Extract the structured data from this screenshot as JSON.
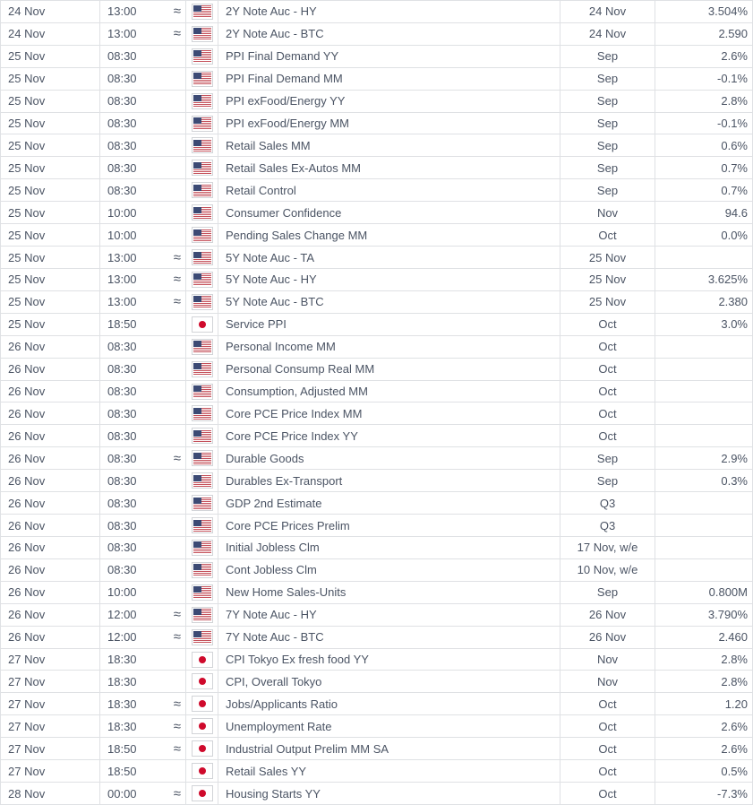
{
  "colors": {
    "text": "#4b5464",
    "border": "#dfe1e4",
    "flag-border": "#d2d4d8",
    "us-canton": "#3c4a74",
    "us-stripe": "#c4505a",
    "jp-red": "#cf0a2c",
    "row-bg": "#ffffff"
  },
  "approx_symbol": "≈",
  "flags": {
    "us": "united-states-flag",
    "jp": "japan-flag"
  },
  "table": {
    "columns": [
      "date",
      "time",
      "approx-indicator",
      "country-flag",
      "event",
      "period",
      "value"
    ],
    "rows": [
      {
        "date": "24 Nov",
        "time": "13:00",
        "approx": true,
        "country": "us",
        "event": "2Y Note Auc - HY",
        "period": "24 Nov",
        "value": "3.504%"
      },
      {
        "date": "24 Nov",
        "time": "13:00",
        "approx": true,
        "country": "us",
        "event": "2Y Note Auc - BTC",
        "period": "24 Nov",
        "value": "2.590"
      },
      {
        "date": "25 Nov",
        "time": "08:30",
        "approx": false,
        "country": "us",
        "event": "PPI Final Demand YY",
        "period": "Sep",
        "value": "2.6%"
      },
      {
        "date": "25 Nov",
        "time": "08:30",
        "approx": false,
        "country": "us",
        "event": "PPI Final Demand MM",
        "period": "Sep",
        "value": "-0.1%"
      },
      {
        "date": "25 Nov",
        "time": "08:30",
        "approx": false,
        "country": "us",
        "event": "PPI exFood/Energy YY",
        "period": "Sep",
        "value": "2.8%"
      },
      {
        "date": "25 Nov",
        "time": "08:30",
        "approx": false,
        "country": "us",
        "event": "PPI exFood/Energy MM",
        "period": "Sep",
        "value": "-0.1%"
      },
      {
        "date": "25 Nov",
        "time": "08:30",
        "approx": false,
        "country": "us",
        "event": "Retail Sales MM",
        "period": "Sep",
        "value": "0.6%"
      },
      {
        "date": "25 Nov",
        "time": "08:30",
        "approx": false,
        "country": "us",
        "event": "Retail Sales Ex-Autos MM",
        "period": "Sep",
        "value": "0.7%"
      },
      {
        "date": "25 Nov",
        "time": "08:30",
        "approx": false,
        "country": "us",
        "event": "Retail Control",
        "period": "Sep",
        "value": "0.7%"
      },
      {
        "date": "25 Nov",
        "time": "10:00",
        "approx": false,
        "country": "us",
        "event": "Consumer Confidence",
        "period": "Nov",
        "value": "94.6"
      },
      {
        "date": "25 Nov",
        "time": "10:00",
        "approx": false,
        "country": "us",
        "event": "Pending Sales Change MM",
        "period": "Oct",
        "value": "0.0%"
      },
      {
        "date": "25 Nov",
        "time": "13:00",
        "approx": true,
        "country": "us",
        "event": "5Y Note Auc - TA",
        "period": "25 Nov",
        "value": ""
      },
      {
        "date": "25 Nov",
        "time": "13:00",
        "approx": true,
        "country": "us",
        "event": "5Y Note Auc - HY",
        "period": "25 Nov",
        "value": "3.625%"
      },
      {
        "date": "25 Nov",
        "time": "13:00",
        "approx": true,
        "country": "us",
        "event": "5Y Note Auc - BTC",
        "period": "25 Nov",
        "value": "2.380"
      },
      {
        "date": "25 Nov",
        "time": "18:50",
        "approx": false,
        "country": "jp",
        "event": "Service PPI",
        "period": "Oct",
        "value": "3.0%"
      },
      {
        "date": "26 Nov",
        "time": "08:30",
        "approx": false,
        "country": "us",
        "event": "Personal Income MM",
        "period": "Oct",
        "value": ""
      },
      {
        "date": "26 Nov",
        "time": "08:30",
        "approx": false,
        "country": "us",
        "event": "Personal Consump Real MM",
        "period": "Oct",
        "value": ""
      },
      {
        "date": "26 Nov",
        "time": "08:30",
        "approx": false,
        "country": "us",
        "event": "Consumption, Adjusted MM",
        "period": "Oct",
        "value": ""
      },
      {
        "date": "26 Nov",
        "time": "08:30",
        "approx": false,
        "country": "us",
        "event": "Core PCE Price Index MM",
        "period": "Oct",
        "value": ""
      },
      {
        "date": "26 Nov",
        "time": "08:30",
        "approx": false,
        "country": "us",
        "event": "Core PCE Price Index YY",
        "period": "Oct",
        "value": ""
      },
      {
        "date": "26 Nov",
        "time": "08:30",
        "approx": true,
        "country": "us",
        "event": "Durable Goods",
        "period": "Sep",
        "value": "2.9%"
      },
      {
        "date": "26 Nov",
        "time": "08:30",
        "approx": false,
        "country": "us",
        "event": "Durables Ex-Transport",
        "period": "Sep",
        "value": "0.3%"
      },
      {
        "date": "26 Nov",
        "time": "08:30",
        "approx": false,
        "country": "us",
        "event": "GDP 2nd Estimate",
        "period": "Q3",
        "value": ""
      },
      {
        "date": "26 Nov",
        "time": "08:30",
        "approx": false,
        "country": "us",
        "event": "Core PCE Prices Prelim",
        "period": "Q3",
        "value": ""
      },
      {
        "date": "26 Nov",
        "time": "08:30",
        "approx": false,
        "country": "us",
        "event": "Initial Jobless Clm",
        "period": "17 Nov, w/e",
        "value": ""
      },
      {
        "date": "26 Nov",
        "time": "08:30",
        "approx": false,
        "country": "us",
        "event": "Cont Jobless Clm",
        "period": "10 Nov, w/e",
        "value": ""
      },
      {
        "date": "26 Nov",
        "time": "10:00",
        "approx": false,
        "country": "us",
        "event": "New Home Sales-Units",
        "period": "Sep",
        "value": "0.800M"
      },
      {
        "date": "26 Nov",
        "time": "12:00",
        "approx": true,
        "country": "us",
        "event": "7Y Note Auc - HY",
        "period": "26 Nov",
        "value": "3.790%"
      },
      {
        "date": "26 Nov",
        "time": "12:00",
        "approx": true,
        "country": "us",
        "event": "7Y Note Auc - BTC",
        "period": "26 Nov",
        "value": "2.460"
      },
      {
        "date": "27 Nov",
        "time": "18:30",
        "approx": false,
        "country": "jp",
        "event": "CPI Tokyo Ex fresh food YY",
        "period": "Nov",
        "value": "2.8%"
      },
      {
        "date": "27 Nov",
        "time": "18:30",
        "approx": false,
        "country": "jp",
        "event": "CPI, Overall Tokyo",
        "period": "Nov",
        "value": "2.8%"
      },
      {
        "date": "27 Nov",
        "time": "18:30",
        "approx": true,
        "country": "jp",
        "event": "Jobs/Applicants Ratio",
        "period": "Oct",
        "value": "1.20"
      },
      {
        "date": "27 Nov",
        "time": "18:30",
        "approx": true,
        "country": "jp",
        "event": "Unemployment Rate",
        "period": "Oct",
        "value": "2.6%"
      },
      {
        "date": "27 Nov",
        "time": "18:50",
        "approx": true,
        "country": "jp",
        "event": "Industrial Output Prelim MM SA",
        "period": "Oct",
        "value": "2.6%"
      },
      {
        "date": "27 Nov",
        "time": "18:50",
        "approx": false,
        "country": "jp",
        "event": "Retail Sales YY",
        "period": "Oct",
        "value": "0.5%"
      },
      {
        "date": "28 Nov",
        "time": "00:00",
        "approx": true,
        "country": "jp",
        "event": "Housing Starts YY",
        "period": "Oct",
        "value": "-7.3%"
      }
    ]
  }
}
